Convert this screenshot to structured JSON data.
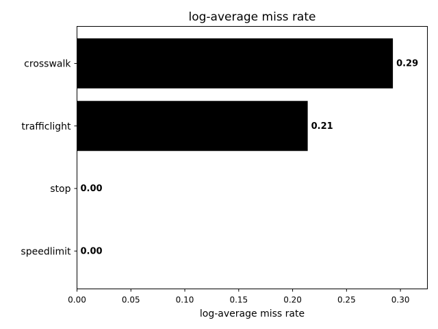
{
  "chart_data": {
    "type": "bar",
    "orientation": "horizontal",
    "title": "log-average miss rate",
    "xlabel": "log-average miss rate",
    "ylabel": "",
    "categories": [
      "crosswalk",
      "trafficlight",
      "stop",
      "speedlimit"
    ],
    "values": [
      0.293,
      0.214,
      0.0,
      0.0
    ],
    "data_labels": [
      "0.29",
      "0.21",
      "0.00",
      "0.00"
    ],
    "xlim": [
      0,
      0.325
    ],
    "xticks": [
      0.0,
      0.05,
      0.1,
      0.15,
      0.2,
      0.25,
      0.3
    ],
    "xtick_labels": [
      "0.00",
      "0.05",
      "0.10",
      "0.15",
      "0.20",
      "0.25",
      "0.30"
    ],
    "grid": false,
    "bar_color": "#000000"
  }
}
